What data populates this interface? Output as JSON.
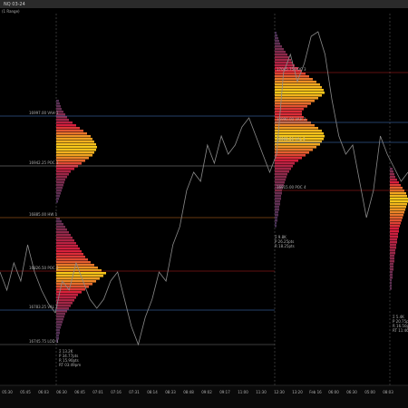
{
  "toolbar": {
    "instrument": "NQ 03-24",
    "period": "(1 Range)"
  },
  "price": {
    "ylim": [
      16700,
      17110
    ],
    "color": "#8a8a8a",
    "values": [
      16825,
      16805,
      16835,
      16815,
      16855,
      16825,
      16805,
      16790,
      16780,
      16815,
      16805,
      16835,
      16815,
      16795,
      16785,
      16795,
      16815,
      16825,
      16795,
      16765,
      16745,
      16775,
      16795,
      16825,
      16815,
      16855,
      16875,
      16915,
      16935,
      16925,
      16965,
      16945,
      16975,
      16955,
      16965,
      16985,
      16995,
      16975,
      16955,
      16935,
      16955,
      17045,
      17065,
      17035,
      17055,
      17085,
      17090,
      17065,
      17015,
      16975,
      16955,
      16965,
      16925,
      16885,
      16915,
      16975,
      16955,
      16940,
      16925,
      16935
    ]
  },
  "profile_colors": [
    "#3d3458",
    "#d81e3c",
    "#f7c81a"
  ],
  "profiles": [
    {
      "top": 17015,
      "row_size": 3,
      "values": [
        3,
        4,
        5,
        6,
        8,
        10,
        12,
        14,
        18,
        22,
        26,
        30,
        34,
        38,
        40,
        42,
        44,
        45,
        44,
        42,
        40,
        36,
        32,
        28,
        24,
        20,
        16,
        14,
        12,
        10,
        9,
        8,
        7,
        6,
        5,
        4,
        3,
        2
      ]
    },
    {
      "top": 16885,
      "row_size": 3,
      "values": [
        4,
        6,
        8,
        10,
        12,
        14,
        16,
        18,
        20,
        22,
        24,
        26,
        28,
        30,
        32,
        35,
        38,
        42,
        46,
        50,
        55,
        52,
        48,
        44,
        40,
        36,
        32,
        28,
        24,
        22,
        20,
        18,
        16,
        14,
        12,
        10,
        9,
        8,
        7,
        6,
        5,
        4,
        4,
        3,
        3,
        2
      ]
    },
    {
      "top": 17090,
      "row_size": 3,
      "values": [
        2,
        3,
        4,
        5,
        6,
        8,
        10,
        12,
        14,
        16,
        18,
        20,
        22,
        26,
        30,
        34,
        38,
        42,
        46,
        50,
        52,
        54,
        55,
        52,
        48,
        44,
        40,
        36,
        32,
        30,
        30,
        32,
        36,
        40,
        44,
        48,
        52,
        54,
        55,
        54,
        52,
        50,
        46,
        42,
        38,
        34,
        30,
        26,
        22,
        20,
        18,
        16,
        14,
        13,
        12,
        11,
        10,
        9,
        8,
        8,
        7,
        7,
        6,
        6,
        5,
        5,
        4,
        4,
        3,
        3,
        2,
        2
      ]
    },
    {
      "top": 16940,
      "row_size": 3,
      "values": [
        3,
        4,
        5,
        6,
        8,
        10,
        12,
        14,
        16,
        18,
        19,
        20,
        20,
        19,
        18,
        17,
        16,
        15,
        14,
        13,
        12,
        11,
        10,
        10,
        9,
        9,
        8,
        8,
        7,
        7,
        6,
        6,
        5,
        5,
        5,
        4,
        4,
        4,
        3,
        3,
        3,
        2,
        2,
        2,
        2
      ]
    }
  ],
  "levels": [
    {
      "price": 16997,
      "label": "16997.00 VAH 1",
      "color": "#4a7fd0",
      "session": 0
    },
    {
      "price": 16942,
      "label": "16942.25 POC 1",
      "color": "#9a9a9a",
      "session": 0
    },
    {
      "price": 16885,
      "label": "16885.00 HW 1",
      "color": "#d07020",
      "session": 0
    },
    {
      "price": 16826,
      "label": "16826.50 POC 2",
      "color": "#c02020",
      "session": 0
    },
    {
      "price": 16783,
      "label": "16783.25 VAL 2",
      "color": "#4a7fd0",
      "session": 0
    },
    {
      "price": 16745,
      "label": "16745.75 LOD 1",
      "color": "#7a7a7a",
      "session": 0
    },
    {
      "price": 17045,
      "label": "17045.75 POC 3",
      "color": "#c02020",
      "session": 1
    },
    {
      "price": 16990,
      "label": "16990.00 VAH 3",
      "color": "#4a7fd0",
      "session": 1
    },
    {
      "price": 16968,
      "label": "16968.50 VAL 3",
      "color": "#4a7fd0",
      "session": 1
    },
    {
      "price": 16915,
      "label": "16915.00 POC 4",
      "color": "#c02020",
      "session": 1
    }
  ],
  "info_boxes": [
    [
      "Σ 13.2K",
      "P 34.77pts",
      "R 15.90pts",
      "RT 03:49pm"
    ],
    [
      "Σ 9.8K",
      "P 26.25pts",
      "R 18.25pts"
    ],
    [
      "Σ 5.4K",
      "P 20.75pts",
      "R 16.50pts",
      "RT 11:46pm"
    ]
  ],
  "x_labels": [
    "05:30",
    "05:45",
    "06:03",
    "06:30",
    "06:45",
    "07:01",
    "07:16",
    "07:31",
    "08:14",
    "08:33",
    "08:48",
    "09:02",
    "09:17",
    "11:00",
    "11:30",
    "12:30",
    "13:20",
    "Feb 16",
    "06:00",
    "06:30",
    "05:00",
    "08:03"
  ]
}
